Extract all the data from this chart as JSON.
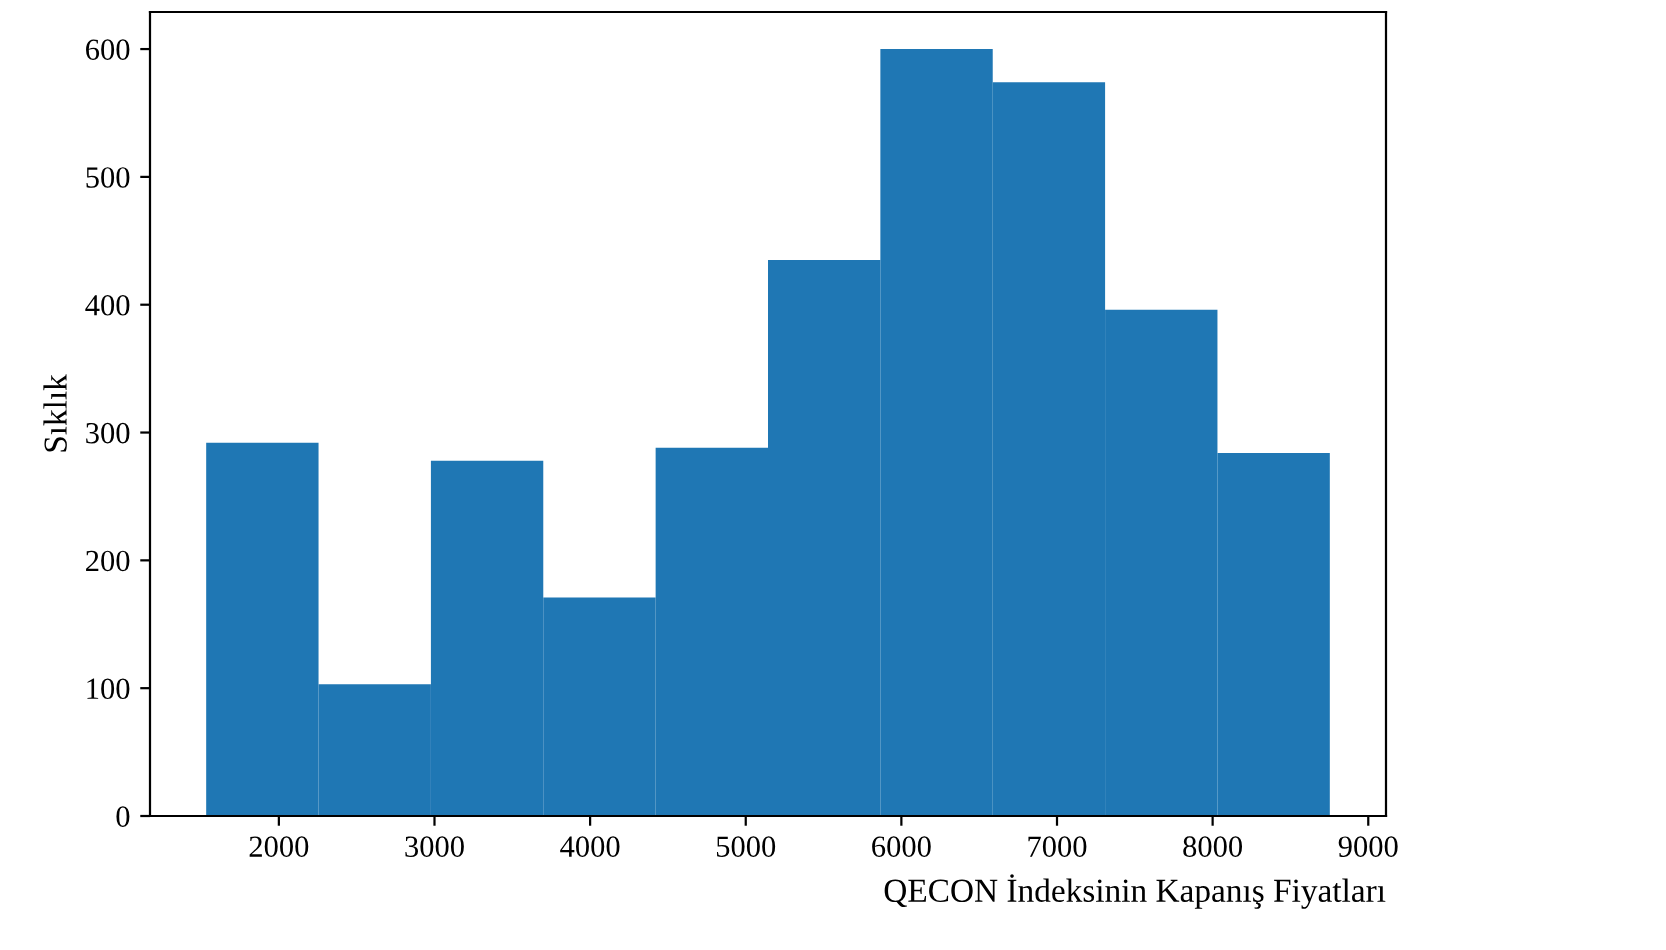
{
  "chart_data": {
    "type": "histogram",
    "xlabel": "QECON İndeksinin Kapanış Fiyatları",
    "ylabel": "Sıklık",
    "bins": [
      1533,
      2255,
      2977,
      3699,
      4421,
      5143,
      5865,
      6587,
      7309,
      8031,
      8753
    ],
    "values": [
      292,
      103,
      278,
      171,
      288,
      435,
      600,
      574,
      396,
      284
    ],
    "color": "#1f77b4",
    "xlim": [
      1172,
      9114
    ],
    "xticks": [
      2000,
      3000,
      4000,
      5000,
      6000,
      7000,
      8000,
      9000
    ],
    "ylim": [
      0,
      629
    ],
    "yticks": [
      0,
      100,
      200,
      300,
      400,
      500,
      600
    ],
    "grid": false
  }
}
